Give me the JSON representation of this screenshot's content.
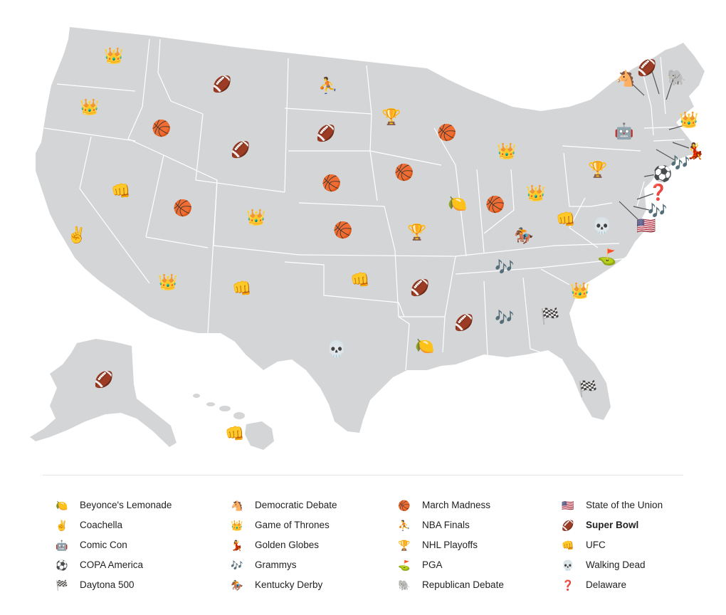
{
  "colors": {
    "land": "#d4d5d7",
    "border": "#ffffff",
    "leader": "#555555"
  },
  "legend": [
    {
      "key": "lemonade",
      "icon": "🍋",
      "label": "Beyonce's Lemonade",
      "bold": false
    },
    {
      "key": "coachella",
      "icon": "✌️",
      "label": "Coachella",
      "bold": false
    },
    {
      "key": "comiccon",
      "icon": "🤖",
      "label": "Comic Con",
      "bold": false
    },
    {
      "key": "copa",
      "icon": "⚽",
      "label": "COPA America",
      "bold": false
    },
    {
      "key": "daytona",
      "icon": "🏁",
      "label": "Daytona 500",
      "bold": false
    },
    {
      "key": "dem",
      "icon": "🐴",
      "label": "Democratic Debate",
      "bold": false
    },
    {
      "key": "got",
      "icon": "👑",
      "label": "Game of Thrones",
      "bold": false
    },
    {
      "key": "globes",
      "icon": "💃",
      "label": "Golden Globes",
      "bold": false
    },
    {
      "key": "grammys",
      "icon": "🎶",
      "label": "Grammys",
      "bold": false
    },
    {
      "key": "derby",
      "icon": "🏇",
      "label": "Kentucky Derby",
      "bold": false
    },
    {
      "key": "madness",
      "icon": "🏀",
      "label": "March Madness",
      "bold": false
    },
    {
      "key": "nba",
      "icon": "⛹️",
      "label": "NBA Finals",
      "bold": false
    },
    {
      "key": "nhl",
      "icon": "🏆",
      "label": "NHL Playoffs",
      "bold": false
    },
    {
      "key": "pga",
      "icon": "⛳",
      "label": "PGA",
      "bold": false
    },
    {
      "key": "gop",
      "icon": "🐘",
      "label": "Republican Debate",
      "bold": false
    },
    {
      "key": "sotu",
      "icon": "🇺🇸",
      "label": "State of the Union",
      "bold": false
    },
    {
      "key": "superbowl",
      "icon": "🏈",
      "label": "Super Bowl",
      "bold": true
    },
    {
      "key": "ufc",
      "icon": "👊",
      "label": "UFC",
      "bold": false
    },
    {
      "key": "walkingdead",
      "icon": "💀",
      "label": "Walking Dead",
      "bold": false
    },
    {
      "key": "delaware",
      "icon": "❓",
      "label": "Delaware",
      "bold": false
    }
  ],
  "states": [
    {
      "state": "Washington",
      "event": "got"
    },
    {
      "state": "Oregon",
      "event": "got"
    },
    {
      "state": "California",
      "event": "coachella"
    },
    {
      "state": "Nevada",
      "event": "ufc"
    },
    {
      "state": "Idaho",
      "event": "madness"
    },
    {
      "state": "Montana",
      "event": "superbowl"
    },
    {
      "state": "Wyoming",
      "event": "superbowl"
    },
    {
      "state": "Utah",
      "event": "madness"
    },
    {
      "state": "Colorado",
      "event": "got"
    },
    {
      "state": "Arizona",
      "event": "got"
    },
    {
      "state": "New Mexico",
      "event": "ufc"
    },
    {
      "state": "North Dakota",
      "event": "nba"
    },
    {
      "state": "South Dakota",
      "event": "superbowl"
    },
    {
      "state": "Nebraska",
      "event": "madness"
    },
    {
      "state": "Kansas",
      "event": "madness"
    },
    {
      "state": "Oklahoma",
      "event": "ufc"
    },
    {
      "state": "Texas",
      "event": "walkingdead"
    },
    {
      "state": "Minnesota",
      "event": "nhl"
    },
    {
      "state": "Iowa",
      "event": "madness"
    },
    {
      "state": "Missouri",
      "event": "nhl"
    },
    {
      "state": "Arkansas",
      "event": "superbowl"
    },
    {
      "state": "Louisiana",
      "event": "lemonade"
    },
    {
      "state": "Wisconsin",
      "event": "madness"
    },
    {
      "state": "Illinois",
      "event": "lemonade"
    },
    {
      "state": "Michigan",
      "event": "got"
    },
    {
      "state": "Indiana",
      "event": "madness"
    },
    {
      "state": "Ohio",
      "event": "got"
    },
    {
      "state": "Kentucky",
      "event": "derby"
    },
    {
      "state": "Tennessee",
      "event": "grammys"
    },
    {
      "state": "Mississippi",
      "event": "superbowl"
    },
    {
      "state": "Alabama",
      "event": "grammys"
    },
    {
      "state": "Georgia",
      "event": "daytona"
    },
    {
      "state": "Florida",
      "event": "daytona"
    },
    {
      "state": "South Carolina",
      "event": "got"
    },
    {
      "state": "North Carolina",
      "event": "pga"
    },
    {
      "state": "Virginia",
      "event": "walkingdead"
    },
    {
      "state": "West Virginia",
      "event": "ufc"
    },
    {
      "state": "Pennsylvania",
      "event": "nhl"
    },
    {
      "state": "New York",
      "event": "comiccon"
    },
    {
      "state": "Vermont",
      "event": "dem"
    },
    {
      "state": "New Hampshire",
      "event": "superbowl"
    },
    {
      "state": "Maine",
      "event": "gop"
    },
    {
      "state": "Massachusetts",
      "event": "got"
    },
    {
      "state": "Rhode Island",
      "event": "globes"
    },
    {
      "state": "Connecticut",
      "event": "grammys"
    },
    {
      "state": "New Jersey",
      "event": "copa"
    },
    {
      "state": "Delaware",
      "event": "delaware"
    },
    {
      "state": "Maryland",
      "event": "grammys"
    },
    {
      "state": "District of Columbia",
      "event": "sotu"
    },
    {
      "state": "Alaska",
      "event": "superbowl"
    },
    {
      "state": "Hawaii",
      "event": "ufc"
    }
  ]
}
